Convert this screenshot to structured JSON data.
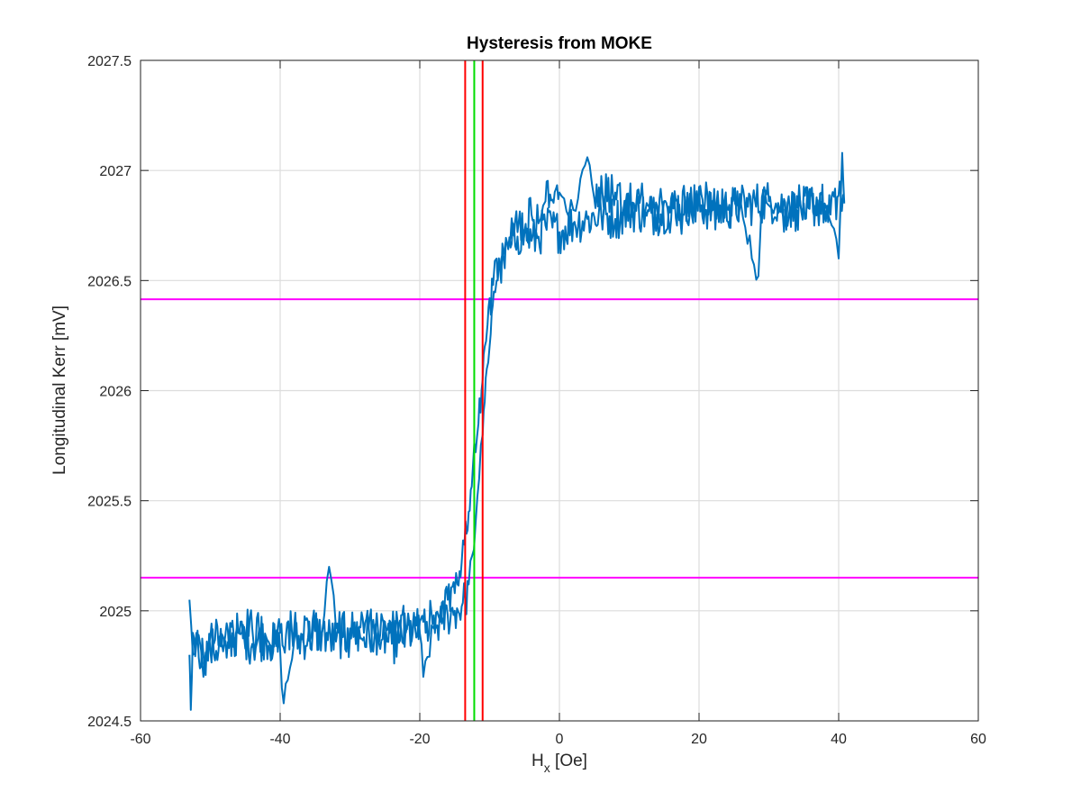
{
  "chart_data": {
    "type": "line",
    "title": "Hysteresis from MOKE",
    "xlabel_main": "H",
    "xlabel_sub": "x",
    "xlabel_unit": " [Oe]",
    "ylabel": "Longitudinal Kerr [mV]",
    "xlim": [
      -60,
      60
    ],
    "ylim": [
      2024.5,
      2027.5
    ],
    "xticks": [
      -60,
      -40,
      -20,
      0,
      20,
      40,
      60
    ],
    "xtick_labels": [
      "-60",
      "-40",
      "-20",
      "0",
      "20",
      "40",
      "60"
    ],
    "yticks": [
      2024.5,
      2025,
      2025.5,
      2026,
      2026.5,
      2027,
      2027.5
    ],
    "ytick_labels": [
      "2024.5",
      "2025",
      "2025.5",
      "2026",
      "2026.5",
      "2027",
      "2027.5"
    ],
    "grid": true,
    "series_color": "#0072BD",
    "series": [
      {
        "branch": "descending",
        "x": [
          40.8,
          38,
          35,
          32,
          29,
          28.5,
          26,
          23,
          20,
          17,
          14,
          11,
          8,
          5,
          4,
          2,
          0,
          -2,
          -3,
          -4,
          -5,
          -6,
          -7,
          -8,
          -8.5,
          -9,
          -9.5,
          -10,
          -10.3,
          -10.7,
          -11,
          -11.3,
          -11.6,
          -12,
          -12.4,
          -12.7,
          -13,
          -13.3,
          -13.6,
          -14,
          -14.3,
          -14.6,
          -15,
          -16,
          -17,
          -18,
          -19,
          -20,
          -22,
          -24,
          -26,
          -28,
          -30,
          -32,
          -33,
          -34,
          -36,
          -38,
          -40,
          -42,
          -44,
          -46,
          -48,
          -50,
          -51,
          -52,
          -52.5,
          -53
        ],
        "y": [
          2026.86,
          2026.82,
          2026.85,
          2026.8,
          2026.88,
          2026.52,
          2026.85,
          2026.82,
          2026.86,
          2026.8,
          2026.84,
          2026.85,
          2026.9,
          2026.87,
          2027.06,
          2026.82,
          2026.9,
          2026.86,
          2026.76,
          2026.8,
          2026.73,
          2026.72,
          2026.7,
          2026.62,
          2026.55,
          2026.6,
          2026.48,
          2026.42,
          2026.3,
          2026.2,
          2026.05,
          2025.9,
          2025.85,
          2025.72,
          2025.65,
          2025.55,
          2025.45,
          2025.35,
          2025.3,
          2025.22,
          2025.18,
          2025.12,
          2025.08,
          2025.05,
          2025.02,
          2024.98,
          2024.95,
          2024.95,
          2024.93,
          2024.9,
          2024.92,
          2024.9,
          2024.88,
          2024.92,
          2025.2,
          2024.9,
          2024.95,
          2024.92,
          2024.9,
          2024.88,
          2024.92,
          2024.9,
          2024.85,
          2024.88,
          2024.7,
          2024.9,
          2024.8,
          2025.05
        ]
      },
      {
        "branch": "ascending",
        "x": [
          -53,
          -52.8,
          -52.5,
          -52,
          -51,
          -50,
          -48,
          -46,
          -44,
          -42,
          -40,
          -39.5,
          -38,
          -36,
          -34,
          -32,
          -30,
          -28,
          -26,
          -24,
          -22,
          -20,
          -19.5,
          -18,
          -17,
          -16,
          -15,
          -14,
          -13.5,
          -13,
          -12.5,
          -12,
          -11.5,
          -11,
          -10.7,
          -10.4,
          -10,
          -9.7,
          -9.4,
          -9,
          -8.5,
          -8,
          -7,
          -6,
          -5,
          -4,
          -3,
          -2,
          0,
          2,
          4,
          6,
          8,
          10,
          14,
          18,
          22,
          26,
          30,
          34,
          38,
          40,
          40.5,
          40.8
        ],
        "y": [
          2024.8,
          2024.55,
          2024.9,
          2024.85,
          2024.8,
          2024.82,
          2024.85,
          2024.9,
          2024.85,
          2024.88,
          2024.82,
          2024.58,
          2024.86,
          2024.88,
          2024.9,
          2024.86,
          2024.92,
          2024.88,
          2024.9,
          2024.85,
          2024.9,
          2024.9,
          2024.7,
          2024.92,
          2024.95,
          2024.98,
          2025.0,
          2025.02,
          2025.05,
          2025.12,
          2025.25,
          2025.4,
          2025.6,
          2025.8,
          2025.95,
          2026.1,
          2026.2,
          2026.35,
          2026.45,
          2026.5,
          2026.55,
          2026.6,
          2026.65,
          2026.7,
          2026.72,
          2026.68,
          2026.7,
          2026.75,
          2026.72,
          2026.76,
          2026.78,
          2026.8,
          2026.78,
          2026.82,
          2026.8,
          2026.85,
          2026.82,
          2026.84,
          2026.86,
          2026.82,
          2026.85,
          2026.6,
          2027.08,
          2026.85
        ]
      }
    ],
    "noise_amplitude": 0.1,
    "vertical_lines": [
      {
        "x": -13.5,
        "color": "#FF0000"
      },
      {
        "x": -12.2,
        "color": "#00DD00"
      },
      {
        "x": -11.0,
        "color": "#FF0000"
      }
    ],
    "horizontal_lines": [
      {
        "y": 2026.415,
        "color": "#FF00FF"
      },
      {
        "y": 2025.15,
        "color": "#FF00FF"
      }
    ]
  }
}
